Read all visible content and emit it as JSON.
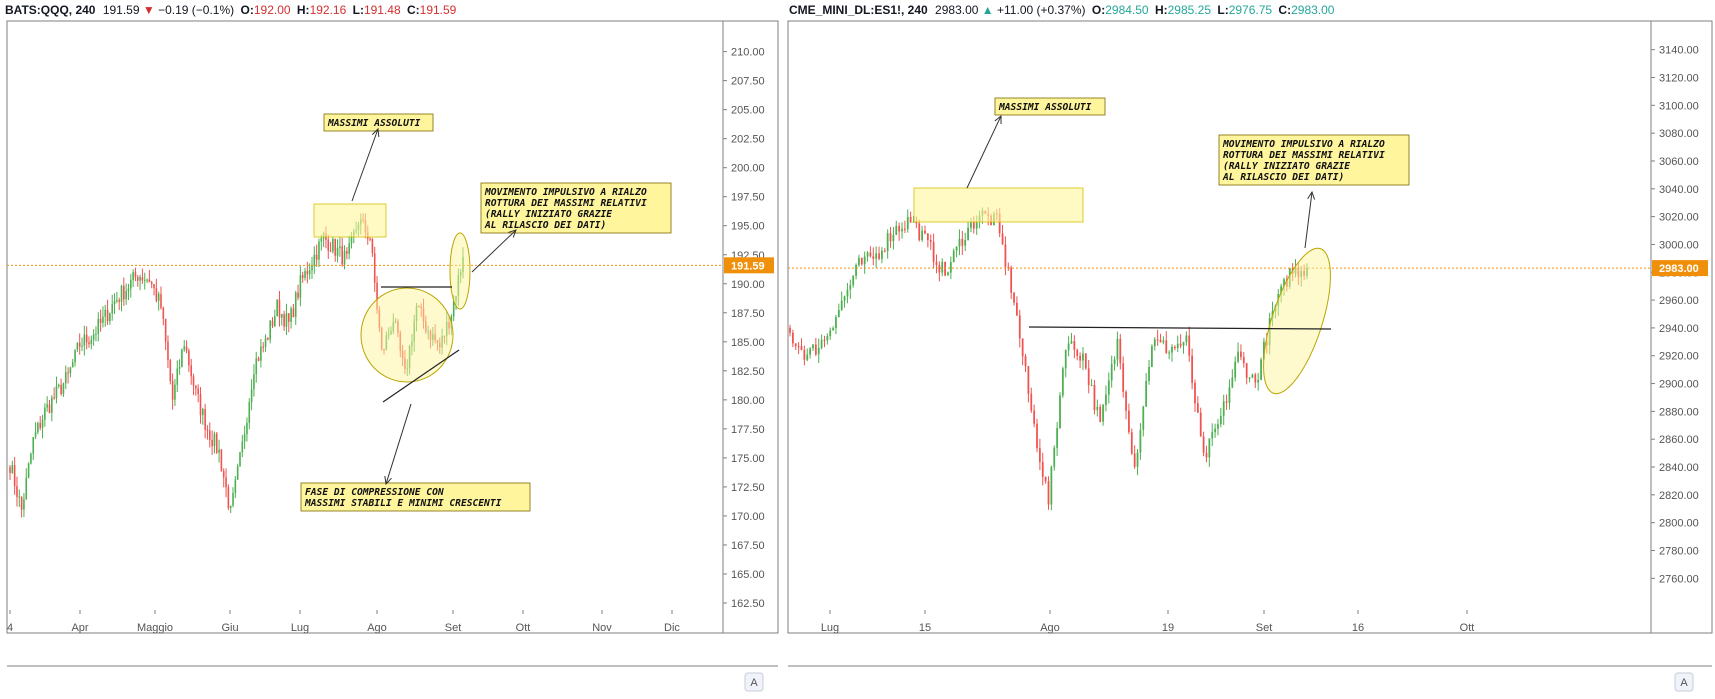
{
  "colors": {
    "up": "#26a69a",
    "up_body": "#4caf50",
    "down": "#ef5350",
    "price_line": "#f0900a",
    "note_bg": "#fff59d",
    "note_border": "#7a6a00",
    "zone": "#fff59d",
    "axis_text": "#555555"
  },
  "left": {
    "symbol": "BATS:QQQ, 240",
    "last": "191.59",
    "change_icon": "triangle-down-icon",
    "change": "−0.19 (−0.1%)",
    "o_label": "O:",
    "o": "192.00",
    "h_label": "H:",
    "h": "192.16",
    "l_label": "L:",
    "l": "191.48",
    "c_label": "C:",
    "c": "191.59",
    "price_tag": "191.59",
    "x_ticks": [
      "4",
      "Apr",
      "Maggio",
      "Giu",
      "Lug",
      "Ago",
      "Set",
      "Ott",
      "Nov",
      "Dic"
    ],
    "corner": "A",
    "notes": [
      {
        "lines": [
          "MASSIMI ASSOLUTI"
        ]
      },
      {
        "lines": [
          "MOVIMENTO IMPULSIVO A RIALZO",
          "ROTTURA DEI MASSIMI RELATIVI",
          "(RALLY INIZIATO GRAZIE",
          "AL RILASCIO DEI DATI)"
        ]
      },
      {
        "lines": [
          "FASE DI COMPRESSIONE CON",
          "MASSIMI STABILI E MINIMI CRESCENTI"
        ]
      }
    ]
  },
  "right": {
    "symbol": "CME_MINI_DL:ES1!, 240",
    "last": "2983.00",
    "change_icon": "triangle-up-icon",
    "change": "+11.00 (+0.37%)",
    "o_label": "O:",
    "o": "2984.50",
    "h_label": "H:",
    "h": "2985.25",
    "l_label": "L:",
    "l": "2976.75",
    "c_label": "C:",
    "c": "2983.00",
    "price_tag": "2983.00",
    "x_ticks": [
      "Lug",
      "15",
      "Ago",
      "19",
      "Set",
      "16",
      "Ott"
    ],
    "corner": "A",
    "notes": [
      {
        "lines": [
          "MASSIMI ASSOLUTI"
        ]
      },
      {
        "lines": [
          "MOVIMENTO IMPULSIVO A RIALZO",
          "ROTTURA DEI MASSIMI RELATIVI",
          "(RALLY INIZIATO GRAZIE",
          "AL RILASCIO DEI DATI)"
        ]
      }
    ]
  },
  "chart_data": [
    {
      "type": "candlestick",
      "symbol": "BATS:QQQ",
      "timeframe": "240",
      "ylim": [
        162.5,
        211
      ],
      "y_ticks": [
        "210.00",
        "207.50",
        "205.00",
        "202.50",
        "200.00",
        "197.50",
        "195.00",
        "192.50",
        "190.00",
        "187.50",
        "185.00",
        "182.50",
        "180.00",
        "177.50",
        "175.00",
        "172.50",
        "170.00",
        "167.50",
        "165.00",
        "162.50"
      ],
      "last_price": 191.59,
      "anchor_closes": [
        [
          "4",
          174.5
        ],
        [
          "",
          170.5
        ],
        [
          "",
          176.5
        ],
        [
          "",
          179.0
        ],
        [
          "",
          180.5
        ],
        [
          "",
          182.0
        ],
        [
          "Apr",
          184.8
        ],
        [
          "",
          185.5
        ],
        [
          "",
          186.8
        ],
        [
          "",
          188.5
        ],
        [
          "",
          189.6
        ],
        [
          "",
          190.8
        ],
        [
          "",
          190.4
        ],
        [
          "Maggio",
          188.0
        ],
        [
          "",
          180.0
        ],
        [
          "",
          185.0
        ],
        [
          "",
          180.5
        ],
        [
          "",
          177.5
        ],
        [
          "",
          175.5
        ],
        [
          "Giu",
          170.2
        ],
        [
          "",
          176.0
        ],
        [
          "",
          183.0
        ],
        [
          "",
          185.0
        ],
        [
          "",
          188.0
        ],
        [
          "",
          186.5
        ],
        [
          "",
          190.0
        ],
        [
          "Lug",
          192.0
        ],
        [
          "",
          194.0
        ],
        [
          "",
          193.0
        ],
        [
          "",
          192.0
        ],
        [
          "",
          195.5
        ],
        [
          "",
          194.0
        ],
        [
          "Ago",
          184.0
        ],
        [
          "",
          187.0
        ],
        [
          "",
          182.0
        ],
        [
          "",
          188.0
        ],
        [
          "",
          186.0
        ],
        [
          "",
          184.5
        ],
        [
          "Set",
          187.5
        ],
        [
          "",
          192.3
        ]
      ]
    },
    {
      "type": "candlestick",
      "symbol": "CME_MINI_DL:ES1!",
      "timeframe": "240",
      "ylim": [
        2748,
        3152
      ],
      "y_ticks": [
        "3140.00",
        "3120.00",
        "3100.00",
        "3080.00",
        "3060.00",
        "3040.00",
        "3020.00",
        "3000.00",
        "2980.00",
        "2960.00",
        "2940.00",
        "2920.00",
        "2900.00",
        "2880.00",
        "2860.00",
        "2840.00",
        "2820.00",
        "2800.00",
        "2780.00",
        "2760.00"
      ],
      "last_price": 2983.0,
      "anchor_closes": [
        [
          "",
          2935
        ],
        [
          "",
          2920
        ],
        [
          "",
          2932
        ],
        [
          "Lug",
          2958
        ],
        [
          "",
          2985
        ],
        [
          "",
          2992
        ],
        [
          "15",
          3010
        ],
        [
          "",
          3018
        ],
        [
          "",
          3000
        ],
        [
          "",
          2978
        ],
        [
          "",
          3005
        ],
        [
          "",
          3022
        ],
        [
          "",
          3016
        ],
        [
          "Ago",
          2960
        ],
        [
          "",
          2880
        ],
        [
          "",
          2815
        ],
        [
          "",
          2930
        ],
        [
          "",
          2920
        ],
        [
          "",
          2870
        ],
        [
          "",
          2930
        ],
        [
          "19",
          2840
        ],
        [
          "",
          2930
        ],
        [
          "",
          2925
        ],
        [
          "",
          2930
        ],
        [
          "",
          2845
        ],
        [
          "",
          2875
        ],
        [
          "",
          2920
        ],
        [
          "Set",
          2900
        ],
        [
          "",
          2950
        ],
        [
          "",
          2980
        ],
        [
          "",
          2983
        ]
      ]
    }
  ]
}
